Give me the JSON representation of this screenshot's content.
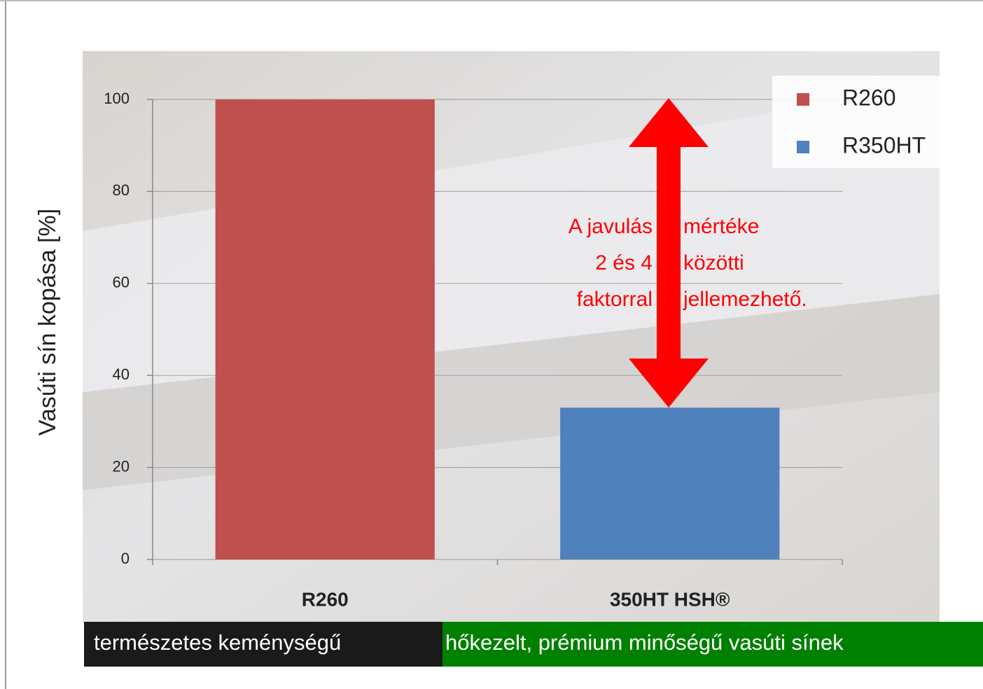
{
  "chart_data": {
    "type": "bar",
    "y_label": "Vasúti sín kopása [%]",
    "categories": [
      "R260",
      "350HT HSH®"
    ],
    "series": [
      {
        "name": "R260",
        "color": "#c0504d",
        "values": [
          100,
          null
        ]
      },
      {
        "name": "R350HT",
        "color": "#4f81bd",
        "values": [
          null,
          33
        ]
      }
    ],
    "ylim": [
      0,
      100
    ],
    "yticks": [
      0,
      20,
      40,
      60,
      80,
      100
    ],
    "grid": true,
    "legend": "top-right",
    "annotation_left": [
      "A javulás",
      "2 és 4",
      "faktorral"
    ],
    "annotation_right": [
      "mértéke",
      "közötti",
      "jellemezhető."
    ],
    "captions": [
      "természetes keménységű",
      "hőkezelt, prémium minőségű vasúti sínek"
    ]
  }
}
